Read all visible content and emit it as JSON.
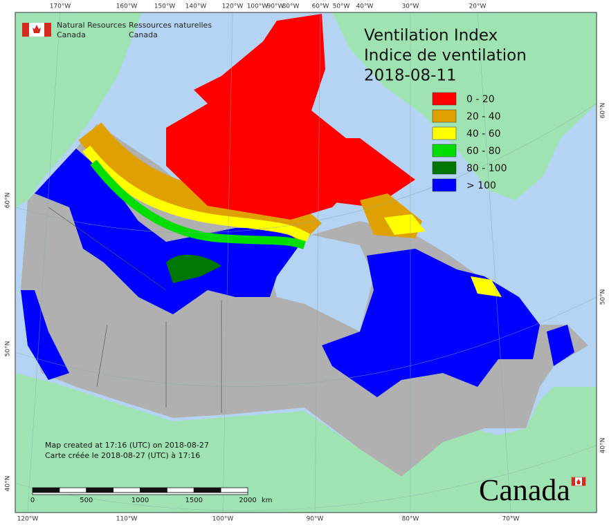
{
  "header": {
    "agency_en": [
      "Natural Resources",
      "Canada"
    ],
    "agency_fr": [
      "Ressources naturelles",
      "Canada"
    ]
  },
  "title": [
    "Ventilation Index",
    "Indice de ventilation",
    "2018-08-11"
  ],
  "legend": [
    {
      "label": "0 - 20",
      "color": "#ff0000"
    },
    {
      "label": "20 - 40",
      "color": "#e0a000"
    },
    {
      "label": "40 - 60",
      "color": "#ffff00"
    },
    {
      "label": "60 - 80",
      "color": "#00dd00"
    },
    {
      "label": "80 - 100",
      "color": "#007700"
    },
    {
      "label": "> 100",
      "color": "#0000ff"
    }
  ],
  "graticule": {
    "top": [
      "170°W",
      "160°W",
      "150°W",
      "140°W",
      "120°W",
      "100°W",
      "90°W",
      "80°W",
      "60°W",
      "50°W",
      "40°W",
      "30°W",
      "20°W"
    ],
    "bottom": [
      "120°W",
      "110°W",
      "100°W",
      "90°W",
      "80°W",
      "70°W"
    ],
    "left": [
      "60°N",
      "50°N",
      "40°N"
    ],
    "right": [
      "60°N",
      "50°N",
      "40°N"
    ]
  },
  "notes": [
    "Map created at 17:16 (UTC) on 2018-08-27",
    "Carte créée le 2018-08-27 (UTC) à 17:16"
  ],
  "scale_bar": {
    "ticks": [
      0,
      500,
      1000,
      1500,
      2000
    ],
    "unit": "km"
  },
  "wordmark": "Canada"
}
